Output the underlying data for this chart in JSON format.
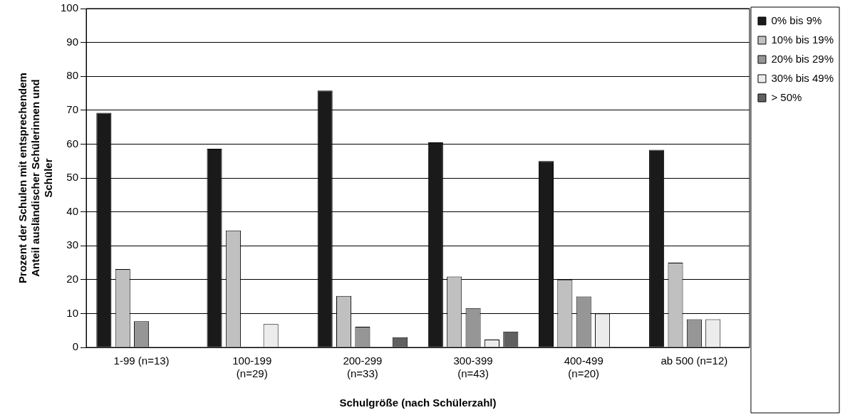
{
  "chart_data": {
    "type": "bar",
    "xlabel": "Schulgröße (nach Schülerzahl)",
    "ylabel": "Prozent der Schulen mit entsprechendem Anteil ausländischer Schülerinnen und Schüler",
    "categories": [
      "1-99 (n=13)",
      "100-199\n(n=29)",
      "200-299\n(n=33)",
      "300-399\n(n=43)",
      "400-499\n(n=20)",
      "ab 500 (n=12)"
    ],
    "series": [
      {
        "name": "0% bis 9%",
        "color": "#1a1a1a",
        "values": [
          69.2,
          58.6,
          75.8,
          60.5,
          55,
          58.3
        ]
      },
      {
        "name": "10% bis 19%",
        "color": "#c0c0c0",
        "values": [
          23.1,
          34.5,
          15.2,
          20.9,
          20,
          25
        ]
      },
      {
        "name": "20% bis 29%",
        "color": "#969696",
        "values": [
          7.7,
          0,
          6.1,
          11.6,
          15,
          8.3
        ]
      },
      {
        "name": "30% bis 49%",
        "color": "#ececec",
        "values": [
          0,
          6.9,
          0,
          2.3,
          10,
          8.3
        ]
      },
      {
        "name": "> 50%",
        "color": "#606060",
        "values": [
          0,
          0,
          3,
          4.7,
          0,
          0
        ]
      }
    ],
    "ylim": [
      0,
      100
    ],
    "yticks": [
      0,
      10,
      20,
      30,
      40,
      50,
      60,
      70,
      80,
      90,
      100
    ],
    "grid": "y",
    "legend": "top right"
  }
}
